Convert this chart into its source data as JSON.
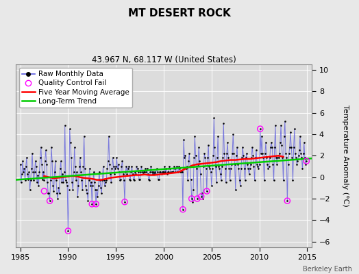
{
  "title": "MT DESERT ROCK",
  "subtitle": "43.967 N, 68.117 W (United States)",
  "ylabel": "Temperature Anomaly (°C)",
  "credit": "Berkeley Earth",
  "xlim": [
    1984.5,
    2015.5
  ],
  "ylim": [
    -6.5,
    10.5
  ],
  "yticks": [
    -6,
    -4,
    -2,
    0,
    2,
    4,
    6,
    8,
    10
  ],
  "xticks": [
    1985,
    1990,
    1995,
    2000,
    2005,
    2010,
    2015
  ],
  "bg_color": "#e8e8e8",
  "plot_bg_color": "#dcdcdc",
  "raw_color": "#5555dd",
  "dot_color": "#000000",
  "ma_color": "#ff0000",
  "trend_color": "#00cc00",
  "qc_color": "#ff00ff",
  "raw_monthly": [
    [
      1985.0,
      1.2
    ],
    [
      1985.083,
      -0.5
    ],
    [
      1985.167,
      0.3
    ],
    [
      1985.25,
      1.5
    ],
    [
      1985.333,
      0.5
    ],
    [
      1985.417,
      0.8
    ],
    [
      1985.5,
      -0.3
    ],
    [
      1985.583,
      1.0
    ],
    [
      1985.667,
      1.8
    ],
    [
      1985.75,
      0.3
    ],
    [
      1985.833,
      -0.2
    ],
    [
      1985.917,
      0.5
    ],
    [
      1986.0,
      -1.2
    ],
    [
      1986.083,
      -0.3
    ],
    [
      1986.167,
      0.8
    ],
    [
      1986.25,
      2.2
    ],
    [
      1986.333,
      0.5
    ],
    [
      1986.417,
      -0.3
    ],
    [
      1986.5,
      0.5
    ],
    [
      1986.583,
      1.5
    ],
    [
      1986.667,
      1.0
    ],
    [
      1986.75,
      -0.5
    ],
    [
      1986.833,
      0.2
    ],
    [
      1986.917,
      -0.8
    ],
    [
      1987.0,
      0.5
    ],
    [
      1987.083,
      1.8
    ],
    [
      1987.167,
      2.8
    ],
    [
      1987.25,
      1.2
    ],
    [
      1987.333,
      -0.2
    ],
    [
      1987.417,
      0.5
    ],
    [
      1987.5,
      -0.3
    ],
    [
      1987.583,
      1.5
    ],
    [
      1987.667,
      2.5
    ],
    [
      1987.75,
      1.2
    ],
    [
      1987.833,
      -0.5
    ],
    [
      1987.917,
      -1.5
    ],
    [
      1988.0,
      -1.5
    ],
    [
      1988.083,
      -2.2
    ],
    [
      1988.167,
      -0.3
    ],
    [
      1988.25,
      2.8
    ],
    [
      1988.333,
      1.5
    ],
    [
      1988.417,
      -0.8
    ],
    [
      1988.5,
      -1.3
    ],
    [
      1988.583,
      0.5
    ],
    [
      1988.667,
      1.5
    ],
    [
      1988.75,
      -0.3
    ],
    [
      1988.833,
      -1.5
    ],
    [
      1988.917,
      -2.0
    ],
    [
      1989.0,
      -1.0
    ],
    [
      1989.083,
      -1.5
    ],
    [
      1989.167,
      0.8
    ],
    [
      1989.25,
      1.5
    ],
    [
      1989.333,
      -0.5
    ],
    [
      1989.417,
      0.3
    ],
    [
      1989.5,
      -0.5
    ],
    [
      1989.583,
      0.5
    ],
    [
      1989.667,
      4.8
    ],
    [
      1989.75,
      -0.3
    ],
    [
      1989.833,
      -0.5
    ],
    [
      1989.917,
      -0.8
    ],
    [
      1990.0,
      -5.0
    ],
    [
      1990.083,
      -1.2
    ],
    [
      1990.167,
      4.5
    ],
    [
      1990.25,
      3.2
    ],
    [
      1990.333,
      1.8
    ],
    [
      1990.417,
      -0.5
    ],
    [
      1990.5,
      -1.2
    ],
    [
      1990.583,
      0.5
    ],
    [
      1990.667,
      2.8
    ],
    [
      1990.75,
      1.0
    ],
    [
      1990.833,
      -0.3
    ],
    [
      1990.917,
      0.5
    ],
    [
      1991.0,
      -1.8
    ],
    [
      1991.083,
      -0.8
    ],
    [
      1991.167,
      1.0
    ],
    [
      1991.25,
      1.8
    ],
    [
      1991.333,
      0.5
    ],
    [
      1991.417,
      -0.3
    ],
    [
      1991.5,
      -1.2
    ],
    [
      1991.583,
      1.0
    ],
    [
      1991.667,
      3.8
    ],
    [
      1991.75,
      0.8
    ],
    [
      1991.833,
      -0.8
    ],
    [
      1991.917,
      -1.2
    ],
    [
      1992.0,
      -1.5
    ],
    [
      1992.083,
      -2.2
    ],
    [
      1992.167,
      -0.3
    ],
    [
      1992.25,
      0.8
    ],
    [
      1992.333,
      -0.8
    ],
    [
      1992.417,
      -0.5
    ],
    [
      1992.5,
      -2.5
    ],
    [
      1992.583,
      -0.8
    ],
    [
      1992.667,
      0.5
    ],
    [
      1992.75,
      -0.5
    ],
    [
      1992.833,
      -1.2
    ],
    [
      1992.917,
      -2.5
    ],
    [
      1993.0,
      -1.2
    ],
    [
      1993.083,
      -1.8
    ],
    [
      1993.167,
      -0.8
    ],
    [
      1993.25,
      0.5
    ],
    [
      1993.333,
      -0.3
    ],
    [
      1993.417,
      -1.0
    ],
    [
      1993.5,
      -1.5
    ],
    [
      1993.583,
      -0.3
    ],
    [
      1993.667,
      1.0
    ],
    [
      1993.75,
      -0.3
    ],
    [
      1993.833,
      -0.8
    ],
    [
      1993.917,
      -0.5
    ],
    [
      1994.0,
      -0.3
    ],
    [
      1994.083,
      0.8
    ],
    [
      1994.167,
      1.5
    ],
    [
      1994.25,
      3.8
    ],
    [
      1994.333,
      1.2
    ],
    [
      1994.417,
      0.3
    ],
    [
      1994.5,
      -0.5
    ],
    [
      1994.583,
      0.8
    ],
    [
      1994.667,
      1.8
    ],
    [
      1994.75,
      1.0
    ],
    [
      1994.833,
      0.3
    ],
    [
      1994.917,
      0.8
    ],
    [
      1995.0,
      1.0
    ],
    [
      1995.083,
      1.8
    ],
    [
      1995.167,
      0.8
    ],
    [
      1995.25,
      1.2
    ],
    [
      1995.333,
      0.5
    ],
    [
      1995.417,
      -0.3
    ],
    [
      1995.5,
      -0.2
    ],
    [
      1995.583,
      1.0
    ],
    [
      1995.667,
      1.5
    ],
    [
      1995.75,
      0.3
    ],
    [
      1995.833,
      -0.3
    ],
    [
      1995.917,
      -2.3
    ],
    [
      1996.0,
      0.5
    ],
    [
      1996.083,
      1.0
    ],
    [
      1996.167,
      0.3
    ],
    [
      1996.25,
      0.8
    ],
    [
      1996.333,
      1.0
    ],
    [
      1996.417,
      -0.2
    ],
    [
      1996.5,
      -0.3
    ],
    [
      1996.583,
      0.5
    ],
    [
      1996.667,
      1.0
    ],
    [
      1996.75,
      0.3
    ],
    [
      1996.833,
      -0.2
    ],
    [
      1996.917,
      -0.3
    ],
    [
      1997.0,
      0.5
    ],
    [
      1997.083,
      0.3
    ],
    [
      1997.167,
      1.0
    ],
    [
      1997.25,
      0.8
    ],
    [
      1997.333,
      0.5
    ],
    [
      1997.417,
      -0.2
    ],
    [
      1997.5,
      -0.2
    ],
    [
      1997.583,
      0.5
    ],
    [
      1997.667,
      1.0
    ],
    [
      1997.75,
      0.5
    ],
    [
      1997.833,
      0.3
    ],
    [
      1997.917,
      0.5
    ],
    [
      1998.0,
      0.5
    ],
    [
      1998.083,
      0.8
    ],
    [
      1998.167,
      0.5
    ],
    [
      1998.25,
      0.8
    ],
    [
      1998.333,
      0.3
    ],
    [
      1998.417,
      -0.2
    ],
    [
      1998.5,
      -0.3
    ],
    [
      1998.583,
      0.5
    ],
    [
      1998.667,
      1.0
    ],
    [
      1998.75,
      0.5
    ],
    [
      1998.833,
      0.3
    ],
    [
      1998.917,
      0.5
    ],
    [
      1999.0,
      0.3
    ],
    [
      1999.083,
      0.5
    ],
    [
      1999.167,
      0.3
    ],
    [
      1999.25,
      0.8
    ],
    [
      1999.333,
      0.5
    ],
    [
      1999.417,
      -0.2
    ],
    [
      1999.5,
      -0.2
    ],
    [
      1999.583,
      0.5
    ],
    [
      1999.667,
      0.5
    ],
    [
      1999.75,
      0.3
    ],
    [
      1999.833,
      0.5
    ],
    [
      1999.917,
      0.5
    ],
    [
      2000.0,
      0.5
    ],
    [
      2000.083,
      1.0
    ],
    [
      2000.167,
      0.5
    ],
    [
      2000.25,
      0.8
    ],
    [
      2000.333,
      0.3
    ],
    [
      2000.417,
      0.5
    ],
    [
      2000.5,
      0.5
    ],
    [
      2000.583,
      1.0
    ],
    [
      2000.667,
      0.8
    ],
    [
      2000.75,
      0.5
    ],
    [
      2000.833,
      0.5
    ],
    [
      2000.917,
      0.5
    ],
    [
      2001.0,
      0.5
    ],
    [
      2001.083,
      1.0
    ],
    [
      2001.167,
      0.8
    ],
    [
      2001.25,
      0.5
    ],
    [
      2001.333,
      1.0
    ],
    [
      2001.417,
      0.5
    ],
    [
      2001.5,
      0.5
    ],
    [
      2001.583,
      1.0
    ],
    [
      2001.667,
      0.8
    ],
    [
      2001.75,
      0.5
    ],
    [
      2001.833,
      0.5
    ],
    [
      2001.917,
      0.5
    ],
    [
      2002.0,
      -3.0
    ],
    [
      2002.083,
      3.5
    ],
    [
      2002.167,
      1.8
    ],
    [
      2002.25,
      2.0
    ],
    [
      2002.333,
      0.8
    ],
    [
      2002.417,
      1.0
    ],
    [
      2002.5,
      -0.3
    ],
    [
      2002.583,
      1.5
    ],
    [
      2002.667,
      2.2
    ],
    [
      2002.75,
      1.0
    ],
    [
      2002.833,
      -0.2
    ],
    [
      2002.917,
      -2.0
    ],
    [
      2003.0,
      -2.3
    ],
    [
      2003.083,
      -1.2
    ],
    [
      2003.167,
      1.8
    ],
    [
      2003.25,
      3.8
    ],
    [
      2003.333,
      2.0
    ],
    [
      2003.417,
      0.8
    ],
    [
      2003.5,
      -2.0
    ],
    [
      2003.583,
      1.2
    ],
    [
      2003.667,
      2.8
    ],
    [
      2003.75,
      1.5
    ],
    [
      2003.833,
      0.3
    ],
    [
      2003.917,
      -1.8
    ],
    [
      2004.0,
      -1.5
    ],
    [
      2004.083,
      -2.0
    ],
    [
      2004.167,
      1.0
    ],
    [
      2004.25,
      2.2
    ],
    [
      2004.333,
      1.8
    ],
    [
      2004.417,
      0.8
    ],
    [
      2004.5,
      -1.3
    ],
    [
      2004.583,
      1.8
    ],
    [
      2004.667,
      3.0
    ],
    [
      2004.75,
      1.0
    ],
    [
      2004.833,
      0.8
    ],
    [
      2004.917,
      0.5
    ],
    [
      2005.0,
      -0.8
    ],
    [
      2005.083,
      0.8
    ],
    [
      2005.167,
      2.0
    ],
    [
      2005.25,
      5.5
    ],
    [
      2005.333,
      2.8
    ],
    [
      2005.417,
      1.0
    ],
    [
      2005.5,
      -0.5
    ],
    [
      2005.583,
      1.8
    ],
    [
      2005.667,
      3.8
    ],
    [
      2005.75,
      1.0
    ],
    [
      2005.833,
      0.8
    ],
    [
      2005.917,
      0.3
    ],
    [
      2006.0,
      -0.3
    ],
    [
      2006.083,
      1.0
    ],
    [
      2006.167,
      1.8
    ],
    [
      2006.25,
      5.0
    ],
    [
      2006.333,
      2.2
    ],
    [
      2006.417,
      0.8
    ],
    [
      2006.5,
      -0.5
    ],
    [
      2006.583,
      2.2
    ],
    [
      2006.667,
      3.2
    ],
    [
      2006.75,
      1.8
    ],
    [
      2006.833,
      0.8
    ],
    [
      2006.917,
      -0.3
    ],
    [
      2007.0,
      0.8
    ],
    [
      2007.083,
      1.2
    ],
    [
      2007.167,
      2.2
    ],
    [
      2007.25,
      4.0
    ],
    [
      2007.333,
      2.2
    ],
    [
      2007.417,
      1.2
    ],
    [
      2007.5,
      -1.2
    ],
    [
      2007.583,
      2.0
    ],
    [
      2007.667,
      2.8
    ],
    [
      2007.75,
      1.2
    ],
    [
      2007.833,
      0.8
    ],
    [
      2007.917,
      -0.3
    ],
    [
      2008.0,
      -0.8
    ],
    [
      2008.083,
      0.8
    ],
    [
      2008.167,
      1.8
    ],
    [
      2008.25,
      2.8
    ],
    [
      2008.333,
      2.0
    ],
    [
      2008.417,
      0.8
    ],
    [
      2008.5,
      -0.3
    ],
    [
      2008.583,
      1.8
    ],
    [
      2008.667,
      2.2
    ],
    [
      2008.75,
      1.2
    ],
    [
      2008.833,
      0.8
    ],
    [
      2008.917,
      0.3
    ],
    [
      2009.0,
      0.8
    ],
    [
      2009.083,
      1.2
    ],
    [
      2009.167,
      1.8
    ],
    [
      2009.25,
      2.8
    ],
    [
      2009.333,
      2.0
    ],
    [
      2009.417,
      1.0
    ],
    [
      2009.5,
      -0.3
    ],
    [
      2009.583,
      1.8
    ],
    [
      2009.667,
      2.5
    ],
    [
      2009.75,
      1.2
    ],
    [
      2009.833,
      1.0
    ],
    [
      2009.917,
      0.8
    ],
    [
      2010.0,
      1.2
    ],
    [
      2010.083,
      4.5
    ],
    [
      2010.167,
      2.2
    ],
    [
      2010.25,
      3.8
    ],
    [
      2010.333,
      2.2
    ],
    [
      2010.417,
      1.8
    ],
    [
      2010.5,
      -0.3
    ],
    [
      2010.583,
      2.2
    ],
    [
      2010.667,
      3.2
    ],
    [
      2010.75,
      1.8
    ],
    [
      2010.833,
      1.2
    ],
    [
      2010.917,
      0.8
    ],
    [
      2011.0,
      1.0
    ],
    [
      2011.083,
      1.8
    ],
    [
      2011.167,
      2.8
    ],
    [
      2011.25,
      3.2
    ],
    [
      2011.333,
      2.8
    ],
    [
      2011.417,
      1.2
    ],
    [
      2011.5,
      -0.3
    ],
    [
      2011.583,
      2.8
    ],
    [
      2011.667,
      4.8
    ],
    [
      2011.75,
      1.8
    ],
    [
      2011.833,
      1.2
    ],
    [
      2011.917,
      1.8
    ],
    [
      2012.0,
      1.8
    ],
    [
      2012.083,
      2.2
    ],
    [
      2012.167,
      3.2
    ],
    [
      2012.25,
      4.8
    ],
    [
      2012.333,
      3.0
    ],
    [
      2012.417,
      1.8
    ],
    [
      2012.5,
      -0.3
    ],
    [
      2012.583,
      3.8
    ],
    [
      2012.667,
      5.2
    ],
    [
      2012.75,
      2.2
    ],
    [
      2012.833,
      1.8
    ],
    [
      2012.917,
      -2.2
    ],
    [
      2013.0,
      1.2
    ],
    [
      2013.083,
      2.2
    ],
    [
      2013.167,
      2.8
    ],
    [
      2013.25,
      4.2
    ],
    [
      2013.333,
      2.8
    ],
    [
      2013.417,
      1.8
    ],
    [
      2013.5,
      -0.3
    ],
    [
      2013.583,
      2.8
    ],
    [
      2013.667,
      4.5
    ],
    [
      2013.75,
      2.2
    ],
    [
      2013.833,
      1.8
    ],
    [
      2013.917,
      1.2
    ],
    [
      2014.0,
      1.5
    ],
    [
      2014.083,
      2.0
    ],
    [
      2014.167,
      2.5
    ],
    [
      2014.25,
      3.8
    ],
    [
      2014.333,
      2.2
    ],
    [
      2014.417,
      1.8
    ],
    [
      2014.5,
      0.8
    ],
    [
      2014.583,
      2.2
    ],
    [
      2014.667,
      3.2
    ],
    [
      2014.75,
      1.8
    ],
    [
      2014.833,
      1.2
    ],
    [
      2014.917,
      1.5
    ]
  ],
  "qc_fail_points": [
    [
      1987.5,
      -1.3
    ],
    [
      1988.083,
      -2.2
    ],
    [
      1990.0,
      -5.0
    ],
    [
      1992.5,
      -2.5
    ],
    [
      1992.917,
      -2.5
    ],
    [
      1995.917,
      -2.3
    ],
    [
      2002.0,
      -3.0
    ],
    [
      2002.917,
      -2.0
    ],
    [
      2003.5,
      -2.0
    ],
    [
      2003.917,
      -1.8
    ],
    [
      2004.5,
      -1.3
    ],
    [
      2010.083,
      4.5
    ],
    [
      2012.917,
      -2.2
    ],
    [
      2014.917,
      1.5
    ]
  ],
  "moving_avg": [
    [
      1987.5,
      0.1
    ],
    [
      1988.0,
      0.0
    ],
    [
      1988.5,
      -0.1
    ],
    [
      1989.0,
      -0.05
    ],
    [
      1989.5,
      0.0
    ],
    [
      1990.0,
      0.05
    ],
    [
      1990.5,
      0.1
    ],
    [
      1991.0,
      0.05
    ],
    [
      1991.5,
      -0.05
    ],
    [
      1992.0,
      -0.1
    ],
    [
      1992.5,
      -0.15
    ],
    [
      1993.0,
      -0.25
    ],
    [
      1993.5,
      -0.25
    ],
    [
      1994.0,
      -0.15
    ],
    [
      1994.5,
      -0.05
    ],
    [
      1995.0,
      0.0
    ],
    [
      1995.5,
      0.05
    ],
    [
      1996.0,
      0.1
    ],
    [
      1996.5,
      0.15
    ],
    [
      1997.0,
      0.2
    ],
    [
      1997.5,
      0.2
    ],
    [
      1998.0,
      0.25
    ],
    [
      1998.5,
      0.2
    ],
    [
      1999.0,
      0.2
    ],
    [
      1999.5,
      0.25
    ],
    [
      2000.0,
      0.3
    ],
    [
      2000.5,
      0.35
    ],
    [
      2001.0,
      0.4
    ],
    [
      2001.5,
      0.45
    ],
    [
      2003.0,
      1.1
    ],
    [
      2003.5,
      1.2
    ],
    [
      2004.0,
      1.25
    ],
    [
      2004.5,
      1.3
    ],
    [
      2005.0,
      1.35
    ],
    [
      2005.5,
      1.4
    ],
    [
      2006.0,
      1.5
    ],
    [
      2006.5,
      1.55
    ],
    [
      2007.0,
      1.6
    ],
    [
      2007.5,
      1.6
    ],
    [
      2008.0,
      1.65
    ],
    [
      2008.5,
      1.7
    ],
    [
      2009.0,
      1.7
    ],
    [
      2009.5,
      1.75
    ],
    [
      2010.0,
      1.8
    ],
    [
      2010.5,
      1.85
    ],
    [
      2011.0,
      1.9
    ],
    [
      2011.5,
      1.95
    ],
    [
      2012.0,
      2.0
    ],
    [
      2012.5,
      1.9
    ]
  ],
  "trend_line": [
    [
      1984.5,
      -0.25
    ],
    [
      2015.5,
      1.75
    ]
  ],
  "title_fontsize": 11,
  "subtitle_fontsize": 8.5,
  "tick_fontsize": 8,
  "legend_fontsize": 7.5,
  "credit_fontsize": 7
}
